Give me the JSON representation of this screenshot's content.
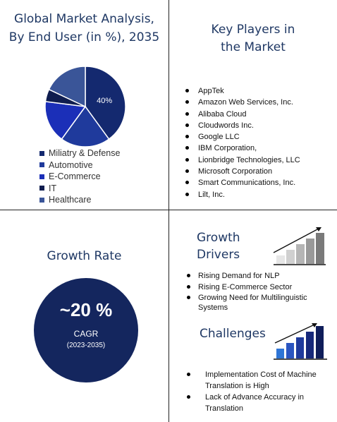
{
  "market": {
    "title_line1": "Global Market Analysis,",
    "title_line2": "By End User  (in %), 2035"
  },
  "chart_data": {
    "type": "pie",
    "title": "Global Market Analysis, By End User  (in %), 2035",
    "slices": [
      {
        "name": "Miliatry & Defense",
        "value": 40,
        "label": "40%",
        "color": "#14296f"
      },
      {
        "name": "Automotive",
        "value": 20,
        "color": "#1f3a9c"
      },
      {
        "name": "E-Commerce",
        "value": 17,
        "color": "#1b2fb8"
      },
      {
        "name": "IT",
        "value": 5,
        "color": "#0f1d4f"
      },
      {
        "name": "Healthcare",
        "value": 18,
        "color": "#3a5598"
      }
    ],
    "legend_position": "bottom"
  },
  "players": {
    "title_line1": "Key Players in",
    "title_line2": "the Market",
    "items": [
      "AppTek",
      "Amazon Web Services, Inc.",
      "Alibaba Cloud",
      "Cloudwords Inc.",
      "Google LLC",
      "IBM Corporation,",
      "Lionbridge Technologies, LLC",
      "Microsoft Corporation",
      "Smart Communications,  Inc.",
      "Lilt, Inc."
    ]
  },
  "growth": {
    "title": "Growth Rate",
    "value": "~20 %",
    "label": "CAGR",
    "period": "(2023-2035)",
    "circle_color": "#14265e"
  },
  "drivers": {
    "title_line1": "Growth",
    "title_line2": "Drivers",
    "icon": "rising-bars-grey-icon",
    "items": [
      "Rising Demand for NLP",
      "Rising E-Commerce Sector",
      "Growing Need for Multilinguistic Systems"
    ]
  },
  "challenges": {
    "title": "Challenges",
    "icon": "rising-bars-blue-icon",
    "items": [
      "Implementation  Cost of Machine Translation is High",
      "Lack of Advance Accuracy  in Translation"
    ]
  }
}
